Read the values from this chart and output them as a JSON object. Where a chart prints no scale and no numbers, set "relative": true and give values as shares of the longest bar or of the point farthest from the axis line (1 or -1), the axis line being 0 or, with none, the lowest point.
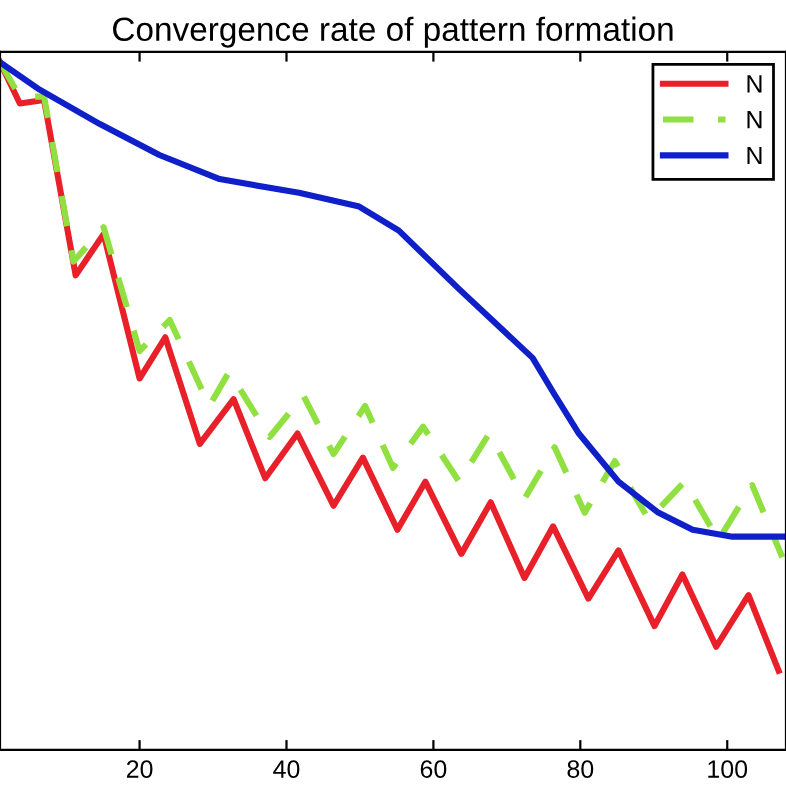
{
  "chart_data": {
    "type": "line",
    "title": "Convergence rate of pattern formation",
    "relative": true,
    "xlim": [
      1,
      108
    ],
    "xticks": [
      20,
      40,
      60,
      80,
      100
    ],
    "tick_labels": "x",
    "grid": false,
    "legend": "top right",
    "series": [
      {
        "name": "N",
        "color": "#e8202a",
        "line_style": "solid",
        "x": [
          1.0,
          3.7,
          7.0,
          11.3,
          15.1,
          20.0,
          23.5,
          28.2,
          32.8,
          37.1,
          41.5,
          46.4,
          50.4,
          55.1,
          58.9,
          63.8,
          67.8,
          72.4,
          76.3,
          81.1,
          85.2,
          90.1,
          93.9,
          98.5,
          102.9,
          107.0
        ],
        "values": [
          1.0,
          0.94,
          0.945,
          0.69,
          0.75,
          0.54,
          0.6,
          0.445,
          0.51,
          0.395,
          0.46,
          0.355,
          0.425,
          0.32,
          0.39,
          0.285,
          0.36,
          0.25,
          0.325,
          0.22,
          0.29,
          0.18,
          0.255,
          0.15,
          0.225,
          0.115
        ]
      },
      {
        "name": "N",
        "color": "#8fe040",
        "line_style": "dashed",
        "x": [
          1.0,
          3.7,
          7.0,
          11.0,
          15.1,
          20.0,
          24.1,
          29.5,
          32.2,
          37.7,
          42.3,
          46.4,
          50.7,
          54.5,
          58.6,
          63.5,
          67.6,
          72.4,
          76.5,
          80.6,
          84.7,
          89.3,
          94.2,
          98.8,
          103.4,
          107.5
        ],
        "values": [
          1.0,
          0.95,
          0.95,
          0.71,
          0.76,
          0.58,
          0.625,
          0.5,
          0.55,
          0.455,
          0.515,
          0.43,
          0.5,
          0.41,
          0.47,
          0.39,
          0.46,
          0.365,
          0.44,
          0.345,
          0.42,
          0.335,
          0.39,
          0.305,
          0.385,
          0.28
        ]
      },
      {
        "name": "N",
        "color": "#1020c8",
        "line_style": "solid",
        "x": [
          1.0,
          6.4,
          14.6,
          22.7,
          30.9,
          41.7,
          49.9,
          55.3,
          63.5,
          73.5,
          76.3,
          79.8,
          85.2,
          90.6,
          95.3,
          100.7,
          107.5
        ],
        "values": [
          1.0,
          0.96,
          0.91,
          0.865,
          0.83,
          0.81,
          0.79,
          0.755,
          0.67,
          0.57,
          0.52,
          0.46,
          0.39,
          0.345,
          0.32,
          0.31,
          0.31
        ]
      }
    ]
  }
}
